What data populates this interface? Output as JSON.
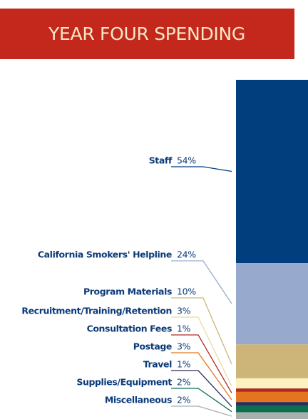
{
  "chart_data": {
    "type": "stacked_bar",
    "title": "YEAR FOUR SPENDING",
    "categories": [
      "Staff",
      "California Smokers' Helpline",
      "Program Materials",
      "Recruitment/Training/Retention",
      "Consultation Fees",
      "Postage",
      "Travel",
      "Supplies/Equipment",
      "Miscellaneous"
    ],
    "values": [
      54,
      24,
      10,
      3,
      1,
      3,
      1,
      2,
      2
    ],
    "value_labels": [
      "54%",
      "24%",
      "10%",
      "3%",
      "1%",
      "3%",
      "1%",
      "2%",
      "2%"
    ],
    "colors": [
      "#003e7e",
      "#97aacd",
      "#cdb57a",
      "#fbf2bf",
      "#b22a23",
      "#e4751f",
      "#2c2a5b",
      "#0b6f4f",
      "#a8b0ac"
    ]
  }
}
